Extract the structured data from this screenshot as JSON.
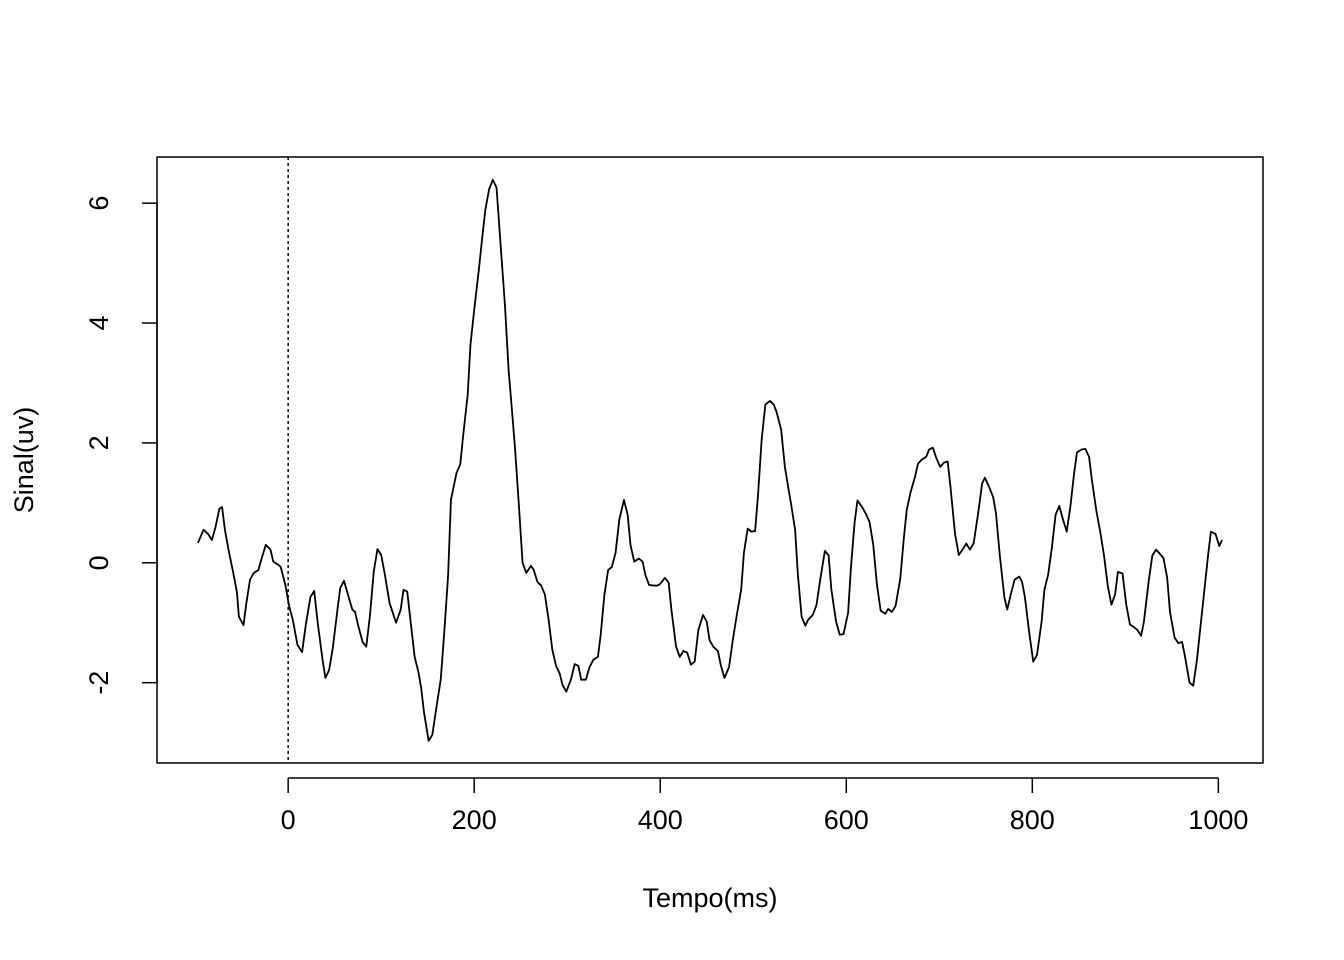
{
  "chart_data": {
    "type": "line",
    "xlabel": "Tempo(ms)",
    "ylabel": "Sinal(uv)",
    "xlim": [
      -141,
      1048
    ],
    "ylim": [
      -3.34,
      6.77
    ],
    "xticks": [
      0,
      200,
      400,
      600,
      800,
      1000
    ],
    "yticks": [
      -2,
      0,
      2,
      4,
      6
    ],
    "vline": 0,
    "grid": false,
    "series": [
      {
        "color": "#000000",
        "x": [
          -97,
          -91,
          -86,
          -82,
          -78,
          -74,
          -71,
          -68,
          -63,
          -59,
          -55,
          -53,
          -48,
          -45,
          -41,
          -37,
          -32,
          -28,
          -24,
          -19,
          -16,
          -11,
          -8,
          -3,
          1,
          5,
          10,
          15,
          19,
          24,
          28,
          32,
          37,
          40,
          44,
          48,
          53,
          56,
          60,
          65,
          69,
          72,
          75,
          80,
          84,
          88,
          92,
          96,
          100,
          104,
          109,
          116,
          121,
          124,
          128,
          132,
          136,
          140,
          143,
          146,
          151,
          155,
          159,
          164,
          168,
          172,
          175,
          181,
          185,
          188,
          193,
          196,
          200,
          205,
          209,
          212,
          216,
          220,
          224,
          228,
          233,
          237,
          241,
          244,
          248,
          252,
          256,
          261,
          264,
          268,
          272,
          276,
          280,
          284,
          288,
          292,
          295,
          299,
          304,
          308,
          312,
          315,
          320,
          324,
          328,
          333,
          336,
          340,
          344,
          348,
          352,
          356,
          361,
          365,
          368,
          372,
          377,
          381,
          384,
          388,
          393,
          397,
          400,
          405,
          409,
          412,
          417,
          421,
          425,
          429,
          433,
          437,
          441,
          446,
          450,
          453,
          457,
          462,
          465,
          469,
          474,
          478,
          482,
          487,
          490,
          494,
          498,
          502,
          505,
          509,
          513,
          518,
          522,
          525,
          530,
          534,
          538,
          541,
          545,
          548,
          552,
          556,
          559,
          564,
          568,
          572,
          577,
          581,
          584,
          589,
          593,
          597,
          602,
          605,
          609,
          612,
          617,
          621,
          625,
          629,
          633,
          637,
          642,
          645,
          649,
          653,
          658,
          662,
          665,
          669,
          674,
          677,
          681,
          686,
          689,
          693,
          697,
          701,
          705,
          709,
          712,
          717,
          721,
          725,
          729,
          733,
          737,
          742,
          746,
          749,
          754,
          758,
          761,
          765,
          770,
          773,
          777,
          781,
          786,
          789,
          792,
          797,
          801,
          805,
          810,
          813,
          817,
          821,
          825,
          829,
          833,
          837,
          841,
          845,
          848,
          853,
          857,
          861,
          864,
          869,
          873,
          877,
          881,
          885,
          889,
          892,
          897,
          901,
          905,
          909,
          913,
          917,
          920,
          925,
          929,
          933,
          936,
          941,
          945,
          948,
          953,
          957,
          961,
          964,
          969,
          973,
          977,
          981,
          985,
          989,
          992,
          997,
          1001,
          1004
        ],
        "values": [
          0.33,
          0.55,
          0.48,
          0.38,
          0.6,
          0.9,
          0.93,
          0.55,
          0.13,
          -0.17,
          -0.5,
          -0.9,
          -1.04,
          -0.68,
          -0.28,
          -0.17,
          -0.12,
          0.1,
          0.3,
          0.22,
          0.02,
          -0.03,
          -0.07,
          -0.37,
          -0.72,
          -0.95,
          -1.37,
          -1.49,
          -1.03,
          -0.57,
          -0.47,
          -1.03,
          -1.62,
          -1.92,
          -1.79,
          -1.42,
          -0.78,
          -0.42,
          -0.3,
          -0.57,
          -0.78,
          -0.82,
          -1.03,
          -1.32,
          -1.4,
          -0.87,
          -0.15,
          0.23,
          0.13,
          -0.2,
          -0.67,
          -1.0,
          -0.78,
          -0.45,
          -0.48,
          -1.03,
          -1.57,
          -1.82,
          -2.09,
          -2.49,
          -2.97,
          -2.87,
          -2.45,
          -1.95,
          -1.12,
          -0.2,
          1.05,
          1.5,
          1.64,
          2.1,
          2.8,
          3.64,
          4.22,
          4.89,
          5.48,
          5.89,
          6.23,
          6.39,
          6.26,
          5.39,
          4.31,
          3.22,
          2.47,
          1.89,
          0.97,
          0.0,
          -0.17,
          -0.05,
          -0.12,
          -0.32,
          -0.38,
          -0.53,
          -0.95,
          -1.45,
          -1.72,
          -1.85,
          -2.04,
          -2.15,
          -1.95,
          -1.69,
          -1.72,
          -1.95,
          -1.95,
          -1.74,
          -1.62,
          -1.57,
          -1.2,
          -0.53,
          -0.12,
          -0.07,
          0.17,
          0.72,
          1.05,
          0.8,
          0.3,
          0.02,
          0.07,
          0.02,
          -0.2,
          -0.37,
          -0.38,
          -0.38,
          -0.35,
          -0.25,
          -0.33,
          -0.78,
          -1.4,
          -1.57,
          -1.47,
          -1.5,
          -1.7,
          -1.65,
          -1.12,
          -0.87,
          -0.98,
          -1.29,
          -1.4,
          -1.47,
          -1.7,
          -1.92,
          -1.74,
          -1.29,
          -0.9,
          -0.45,
          0.17,
          0.57,
          0.52,
          0.53,
          1.1,
          2.05,
          2.64,
          2.7,
          2.64,
          2.52,
          2.22,
          1.6,
          1.22,
          0.95,
          0.55,
          -0.2,
          -0.9,
          -1.05,
          -0.95,
          -0.87,
          -0.7,
          -0.28,
          0.2,
          0.12,
          -0.45,
          -0.98,
          -1.2,
          -1.19,
          -0.83,
          -0.08,
          0.68,
          1.04,
          0.93,
          0.82,
          0.68,
          0.3,
          -0.37,
          -0.8,
          -0.85,
          -0.77,
          -0.82,
          -0.72,
          -0.27,
          0.43,
          0.88,
          1.17,
          1.44,
          1.65,
          1.72,
          1.77,
          1.89,
          1.92,
          1.74,
          1.6,
          1.67,
          1.69,
          1.27,
          0.47,
          0.13,
          0.22,
          0.32,
          0.22,
          0.33,
          0.85,
          1.32,
          1.42,
          1.25,
          1.09,
          0.82,
          0.13,
          -0.58,
          -0.78,
          -0.52,
          -0.28,
          -0.23,
          -0.32,
          -0.57,
          -1.2,
          -1.65,
          -1.54,
          -0.98,
          -0.45,
          -0.2,
          0.25,
          0.8,
          0.95,
          0.72,
          0.52,
          0.95,
          1.5,
          1.84,
          1.89,
          1.9,
          1.77,
          1.39,
          0.85,
          0.52,
          0.13,
          -0.37,
          -0.7,
          -0.53,
          -0.15,
          -0.18,
          -0.7,
          -1.03,
          -1.07,
          -1.12,
          -1.22,
          -0.98,
          -0.32,
          0.12,
          0.22,
          0.17,
          0.08,
          -0.25,
          -0.82,
          -1.25,
          -1.34,
          -1.32,
          -1.55,
          -2.0,
          -2.05,
          -1.62,
          -1.03,
          -0.45,
          0.13,
          0.52,
          0.48,
          0.28,
          0.38
        ]
      }
    ]
  }
}
